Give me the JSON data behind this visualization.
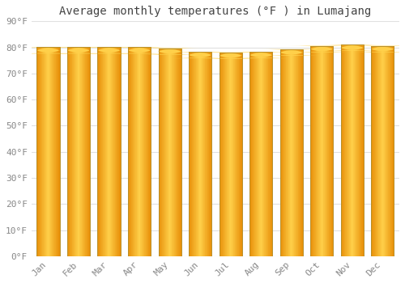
{
  "title": "Average monthly temperatures (°F ) in Lumajang",
  "months": [
    "Jan",
    "Feb",
    "Mar",
    "Apr",
    "May",
    "Jun",
    "Jul",
    "Aug",
    "Sep",
    "Oct",
    "Nov",
    "Dec"
  ],
  "values": [
    80.1,
    80.1,
    80.1,
    80.1,
    79.7,
    78.3,
    78.1,
    78.3,
    79.3,
    80.6,
    81.1,
    80.6
  ],
  "bar_color_center": "#FFD04A",
  "bar_color_edge": "#E8900A",
  "bar_border_color": "#B8860B",
  "background_color": "#FFFFFF",
  "grid_color": "#E0E0E0",
  "title_color": "#444444",
  "tick_color": "#888888",
  "ylim": [
    0,
    90
  ],
  "yticks": [
    0,
    10,
    20,
    30,
    40,
    50,
    60,
    70,
    80,
    90
  ],
  "ytick_labels": [
    "0°F",
    "10°F",
    "20°F",
    "30°F",
    "40°F",
    "50°F",
    "60°F",
    "70°F",
    "80°F",
    "90°F"
  ],
  "title_fontsize": 10,
  "tick_fontsize": 8,
  "bar_width": 0.75
}
